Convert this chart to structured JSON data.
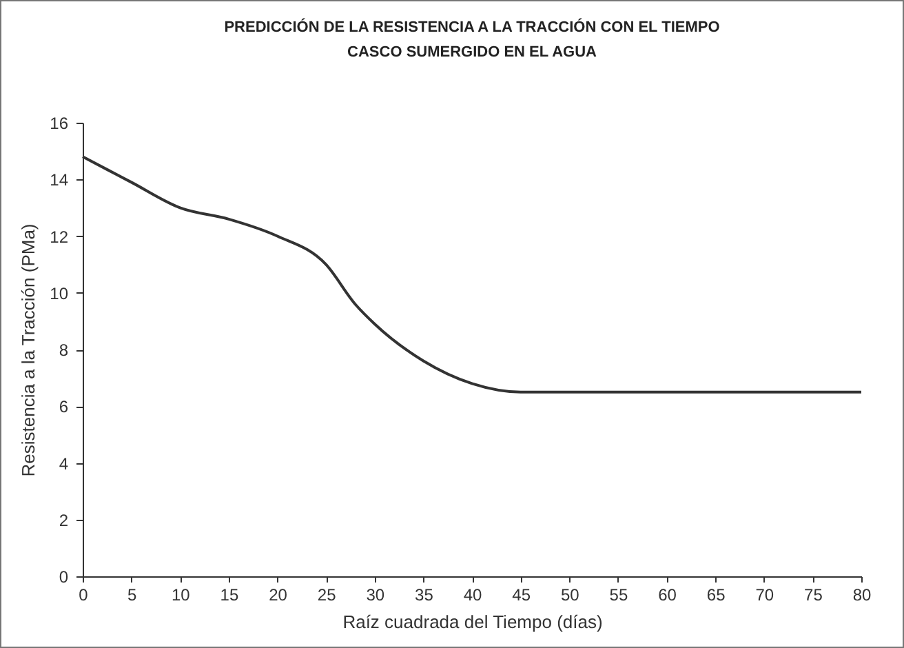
{
  "chart_data": {
    "type": "line",
    "title": [
      "PREDICCIÓN DE LA RESISTENCIA A LA TRACCIÓN CON EL TIEMPO",
      "CASCO SUMERGIDO EN EL AGUA"
    ],
    "xlabel": "Raíz cuadrada del Tiempo  (días)",
    "ylabel": "Resistencia a la Tracción (PMa)",
    "x": [
      0,
      5,
      10,
      15,
      20,
      25,
      28,
      30,
      35,
      40,
      45,
      50,
      55,
      60,
      65,
      70,
      75,
      80
    ],
    "series": [
      {
        "color": "#333333",
        "values": [
          14.8,
          13.9,
          13.0,
          12.6,
          12.0,
          11.0,
          9.6,
          8.9,
          7.6,
          6.8,
          6.5,
          6.5,
          6.5,
          6.5,
          6.5,
          6.5,
          6.5,
          6.5
        ]
      }
    ],
    "xlim": [
      0,
      80
    ],
    "xticks": [
      0,
      5,
      10,
      15,
      20,
      25,
      30,
      35,
      40,
      45,
      50,
      55,
      60,
      65,
      70,
      75,
      80
    ],
    "ylim": [
      0,
      16
    ],
    "yticks": [
      0,
      2,
      4,
      6,
      8,
      10,
      12,
      14,
      16
    ],
    "grid": false,
    "marker": "none",
    "line_style": "solid"
  }
}
